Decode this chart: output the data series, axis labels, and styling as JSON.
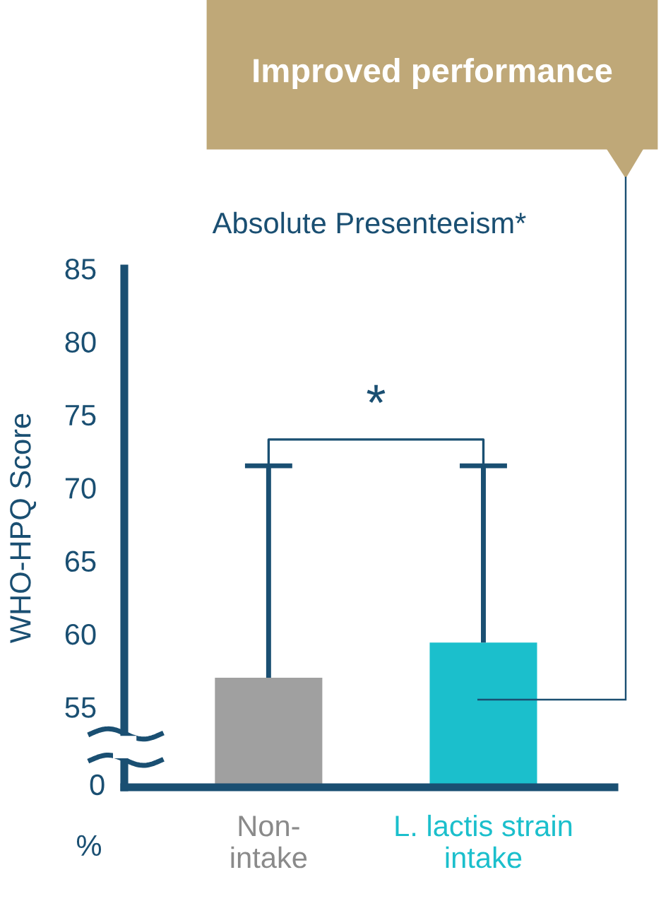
{
  "chart_data": {
    "type": "bar",
    "title": "Absolute Presenteeism*",
    "ylabel": "WHO-HPQ Score",
    "categories": [
      "Non-\nintake",
      "L. lactis strain\nintake"
    ],
    "values": [
      57.0,
      59.4
    ],
    "colors": [
      "#a0a0a0",
      "#1bbfcc"
    ],
    "errors": [
      [
        57.0,
        71.5
      ],
      [
        59.4,
        71.5
      ]
    ],
    "ylim": [
      49.5,
      85
    ],
    "yticks": [
      55,
      60,
      65,
      70,
      75,
      80,
      85
    ],
    "grid": false,
    "annotations": [
      "*",
      "Improved performance",
      "%",
      "0"
    ]
  }
}
